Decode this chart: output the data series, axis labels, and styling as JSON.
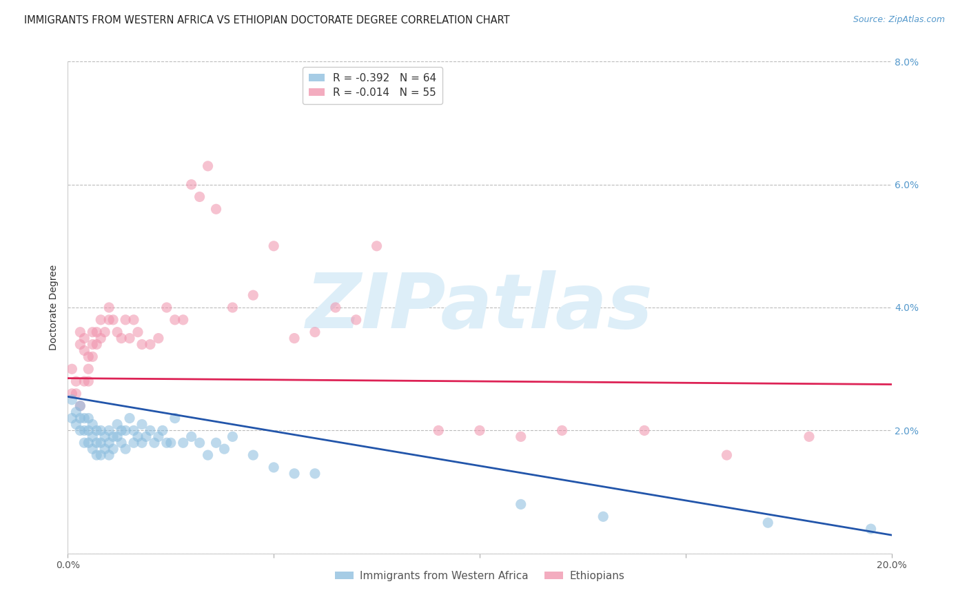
{
  "title": "IMMIGRANTS FROM WESTERN AFRICA VS ETHIOPIAN DOCTORATE DEGREE CORRELATION CHART",
  "source": "Source: ZipAtlas.com",
  "ylabel": "Doctorate Degree",
  "xlim": [
    0.0,
    0.2
  ],
  "ylim": [
    0.0,
    0.08
  ],
  "yticks": [
    0.0,
    0.02,
    0.04,
    0.06,
    0.08
  ],
  "xticks": [
    0.0,
    0.05,
    0.1,
    0.15,
    0.2
  ],
  "xtick_labels": [
    "0.0%",
    "",
    "",
    "",
    "20.0%"
  ],
  "ytick_labels_right": [
    "",
    "2.0%",
    "4.0%",
    "6.0%",
    "8.0%"
  ],
  "legend_entries": [
    {
      "label": "Immigrants from Western Africa",
      "color": "#a8c8e8",
      "R": "-0.392",
      "N": "64"
    },
    {
      "label": "Ethiopians",
      "color": "#f4a0b8",
      "R": "-0.014",
      "N": "55"
    }
  ],
  "blue_scatter_x": [
    0.001,
    0.001,
    0.002,
    0.002,
    0.003,
    0.003,
    0.003,
    0.004,
    0.004,
    0.004,
    0.005,
    0.005,
    0.005,
    0.006,
    0.006,
    0.006,
    0.007,
    0.007,
    0.007,
    0.008,
    0.008,
    0.008,
    0.009,
    0.009,
    0.01,
    0.01,
    0.01,
    0.011,
    0.011,
    0.012,
    0.012,
    0.013,
    0.013,
    0.014,
    0.014,
    0.015,
    0.016,
    0.016,
    0.017,
    0.018,
    0.018,
    0.019,
    0.02,
    0.021,
    0.022,
    0.023,
    0.024,
    0.025,
    0.026,
    0.028,
    0.03,
    0.032,
    0.034,
    0.036,
    0.038,
    0.04,
    0.045,
    0.05,
    0.055,
    0.06,
    0.11,
    0.13,
    0.17,
    0.195
  ],
  "blue_scatter_y": [
    0.025,
    0.022,
    0.023,
    0.021,
    0.024,
    0.022,
    0.02,
    0.022,
    0.02,
    0.018,
    0.022,
    0.02,
    0.018,
    0.021,
    0.019,
    0.017,
    0.02,
    0.018,
    0.016,
    0.02,
    0.018,
    0.016,
    0.019,
    0.017,
    0.02,
    0.018,
    0.016,
    0.019,
    0.017,
    0.021,
    0.019,
    0.02,
    0.018,
    0.02,
    0.017,
    0.022,
    0.02,
    0.018,
    0.019,
    0.021,
    0.018,
    0.019,
    0.02,
    0.018,
    0.019,
    0.02,
    0.018,
    0.018,
    0.022,
    0.018,
    0.019,
    0.018,
    0.016,
    0.018,
    0.017,
    0.019,
    0.016,
    0.014,
    0.013,
    0.013,
    0.008,
    0.006,
    0.005,
    0.004
  ],
  "pink_scatter_x": [
    0.001,
    0.001,
    0.002,
    0.002,
    0.003,
    0.003,
    0.004,
    0.004,
    0.005,
    0.005,
    0.006,
    0.006,
    0.007,
    0.007,
    0.008,
    0.008,
    0.009,
    0.01,
    0.01,
    0.011,
    0.012,
    0.013,
    0.014,
    0.015,
    0.016,
    0.017,
    0.018,
    0.02,
    0.022,
    0.024,
    0.026,
    0.028,
    0.03,
    0.032,
    0.034,
    0.036,
    0.04,
    0.045,
    0.05,
    0.055,
    0.06,
    0.065,
    0.07,
    0.075,
    0.09,
    0.1,
    0.11,
    0.12,
    0.14,
    0.16,
    0.18,
    0.003,
    0.004,
    0.005,
    0.006
  ],
  "pink_scatter_y": [
    0.026,
    0.03,
    0.028,
    0.026,
    0.034,
    0.024,
    0.035,
    0.033,
    0.032,
    0.028,
    0.036,
    0.034,
    0.036,
    0.034,
    0.038,
    0.035,
    0.036,
    0.04,
    0.038,
    0.038,
    0.036,
    0.035,
    0.038,
    0.035,
    0.038,
    0.036,
    0.034,
    0.034,
    0.035,
    0.04,
    0.038,
    0.038,
    0.06,
    0.058,
    0.063,
    0.056,
    0.04,
    0.042,
    0.05,
    0.035,
    0.036,
    0.04,
    0.038,
    0.05,
    0.02,
    0.02,
    0.019,
    0.02,
    0.02,
    0.016,
    0.019,
    0.036,
    0.028,
    0.03,
    0.032
  ],
  "blue_line_x": [
    0.0,
    0.2
  ],
  "blue_line_y": [
    0.0255,
    0.003
  ],
  "pink_line_x": [
    0.0,
    0.2
  ],
  "pink_line_y": [
    0.0285,
    0.0275
  ],
  "blue_color": "#88bbdd",
  "pink_color": "#f090aa",
  "blue_line_color": "#2255aa",
  "pink_line_color": "#dd2255",
  "right_axis_color": "#5599cc",
  "bg_color": "#ffffff",
  "grid_color": "#bbbbbb",
  "scatter_alpha": 0.55,
  "scatter_size": 120,
  "watermark": "ZIPatlas",
  "watermark_color": "#ddeef8",
  "watermark_fontsize": 80
}
